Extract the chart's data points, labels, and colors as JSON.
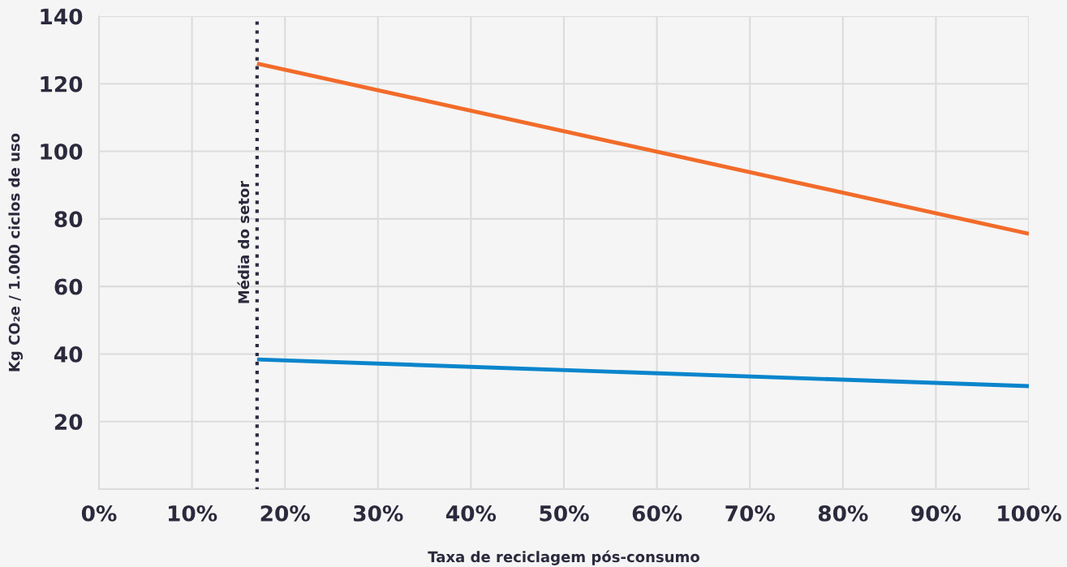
{
  "chart_data": {
    "type": "line",
    "xlabel": "Taxa de reciclagem pós-consumo",
    "ylabel": "Kg CO₂e / 1.000 ciclos de uso",
    "x": [
      17,
      100
    ],
    "series": [
      {
        "color": "#f26b2a",
        "values": [
          126,
          75.6
        ]
      },
      {
        "color": "#0a85cc",
        "values": [
          38.4,
          30.5
        ]
      }
    ],
    "xlim": [
      0,
      100
    ],
    "xticks": [
      {
        "value": 0,
        "label": "0%"
      },
      {
        "value": 10,
        "label": "10%"
      },
      {
        "value": 20,
        "label": "20%"
      },
      {
        "value": 30,
        "label": "30%"
      },
      {
        "value": 40,
        "label": "40%"
      },
      {
        "value": 50,
        "label": "50%"
      },
      {
        "value": 60,
        "label": "60%"
      },
      {
        "value": 70,
        "label": "70%"
      },
      {
        "value": 80,
        "label": "80%"
      },
      {
        "value": 90,
        "label": "90%"
      },
      {
        "value": 100,
        "label": "100%"
      }
    ],
    "ylim": [
      0,
      140
    ],
    "yticks": [
      20,
      40,
      60,
      80,
      100,
      120,
      140
    ],
    "grid": true,
    "marker": "none",
    "line_style": "solid",
    "legend": false,
    "ref_lines": [
      {
        "axis": "x",
        "value": 17,
        "label": "Média do setor",
        "color": "#2b2a3d",
        "line_style": "dotted"
      }
    ]
  }
}
